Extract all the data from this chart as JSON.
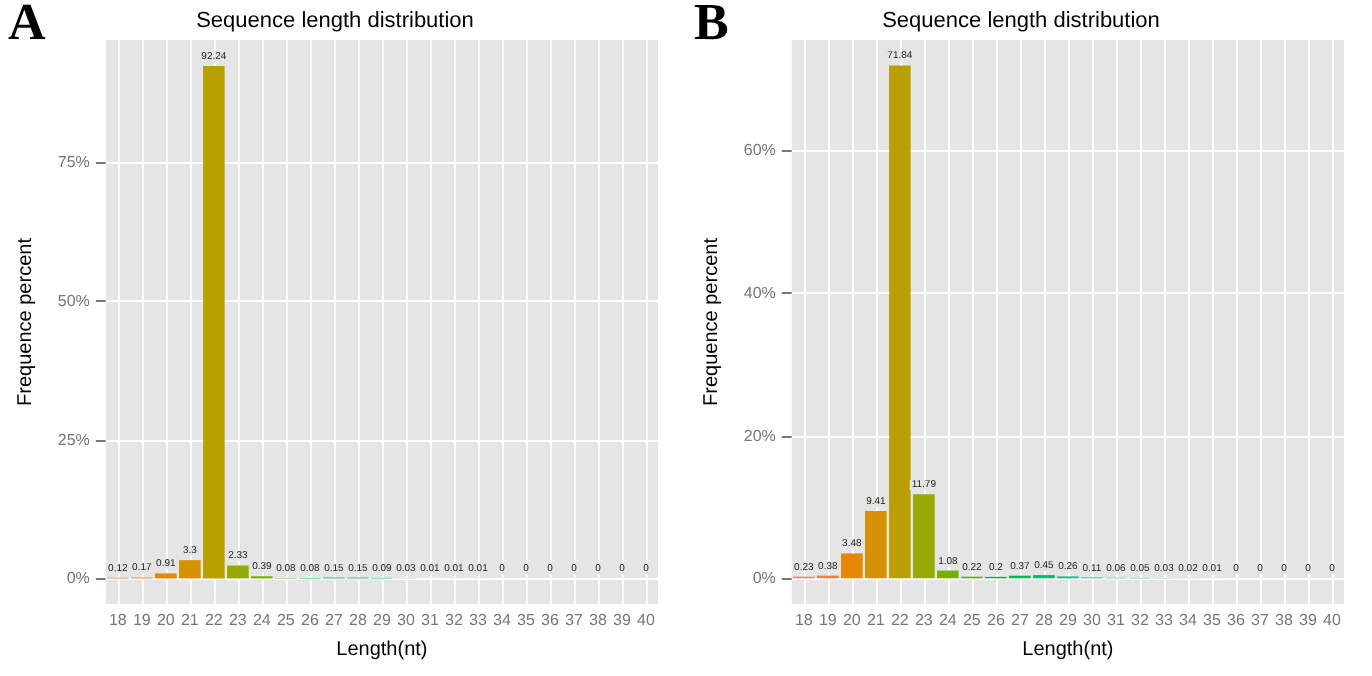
{
  "chart_data": [
    {
      "type": "bar",
      "title": "Sequence length distribution",
      "xlabel": "Length(nt)",
      "ylabel": "Frequence percent",
      "annotations": [
        "A"
      ],
      "categories": [
        "18",
        "19",
        "20",
        "21",
        "22",
        "23",
        "24",
        "25",
        "26",
        "27",
        "28",
        "29",
        "30",
        "31",
        "32",
        "33",
        "34",
        "35",
        "36",
        "37",
        "38",
        "39",
        "40"
      ],
      "values": [
        0.12,
        0.17,
        0.91,
        3.3,
        92.24,
        2.33,
        0.39,
        0.08,
        0.08,
        0.15,
        0.15,
        0.09,
        0.03,
        0.01,
        0.01,
        0.01,
        0,
        0,
        0,
        0,
        0,
        0,
        0
      ],
      "colors": [
        "#F8766D",
        "#F07F4D",
        "#E58700",
        "#D69100",
        "#B9A000",
        "#96A900",
        "#77AF00",
        "#4BB400",
        "#00B81F",
        "#00BA4E",
        "#00BC6F",
        "#00BE8B",
        "#00BFA4",
        "#00BDBB",
        "#00BACF",
        "#00B5E1",
        "#00ADEF",
        "#00A3FA",
        "#5E98FF",
        "#9B8CFF",
        "#C67EFF",
        "#E270F0",
        "#F066C8"
      ],
      "ylim": [
        -4.6,
        96.9
      ],
      "yticks": [
        {
          "value": 0,
          "label": "0%"
        },
        {
          "value": 25,
          "label": "25%"
        },
        {
          "value": 50,
          "label": "50%"
        },
        {
          "value": 75,
          "label": "75%"
        }
      ],
      "grid": true,
      "data_labels": true
    },
    {
      "type": "bar",
      "title": "Sequence length distribution",
      "xlabel": "Length(nt)",
      "ylabel": "Frequence percent",
      "annotations": [
        "B"
      ],
      "categories": [
        "18",
        "19",
        "20",
        "21",
        "22",
        "23",
        "24",
        "25",
        "26",
        "27",
        "28",
        "29",
        "30",
        "31",
        "32",
        "33",
        "34",
        "35",
        "36",
        "37",
        "38",
        "39",
        "40"
      ],
      "values": [
        0.23,
        0.38,
        3.48,
        9.41,
        71.84,
        11.79,
        1.08,
        0.22,
        0.2,
        0.37,
        0.45,
        0.26,
        0.11,
        0.06,
        0.05,
        0.03,
        0.02,
        0.01,
        0,
        0,
        0,
        0,
        0
      ],
      "colors": [
        "#F8766D",
        "#F07F4D",
        "#E58700",
        "#D69100",
        "#B9A000",
        "#96A900",
        "#77AF00",
        "#4BB400",
        "#00B81F",
        "#00BA4E",
        "#00BC6F",
        "#00BE8B",
        "#00BFA4",
        "#00BDBB",
        "#00BACF",
        "#00B5E1",
        "#00ADEF",
        "#00A3FA",
        "#5E98FF",
        "#9B8CFF",
        "#C67EFF",
        "#E270F0",
        "#F066C8"
      ],
      "ylim": [
        -3.6,
        75.4
      ],
      "yticks": [
        {
          "value": 0,
          "label": "0%"
        },
        {
          "value": 20,
          "label": "20%"
        },
        {
          "value": 40,
          "label": "40%"
        },
        {
          "value": 60,
          "label": "60%"
        }
      ],
      "grid": true,
      "data_labels": true
    }
  ]
}
